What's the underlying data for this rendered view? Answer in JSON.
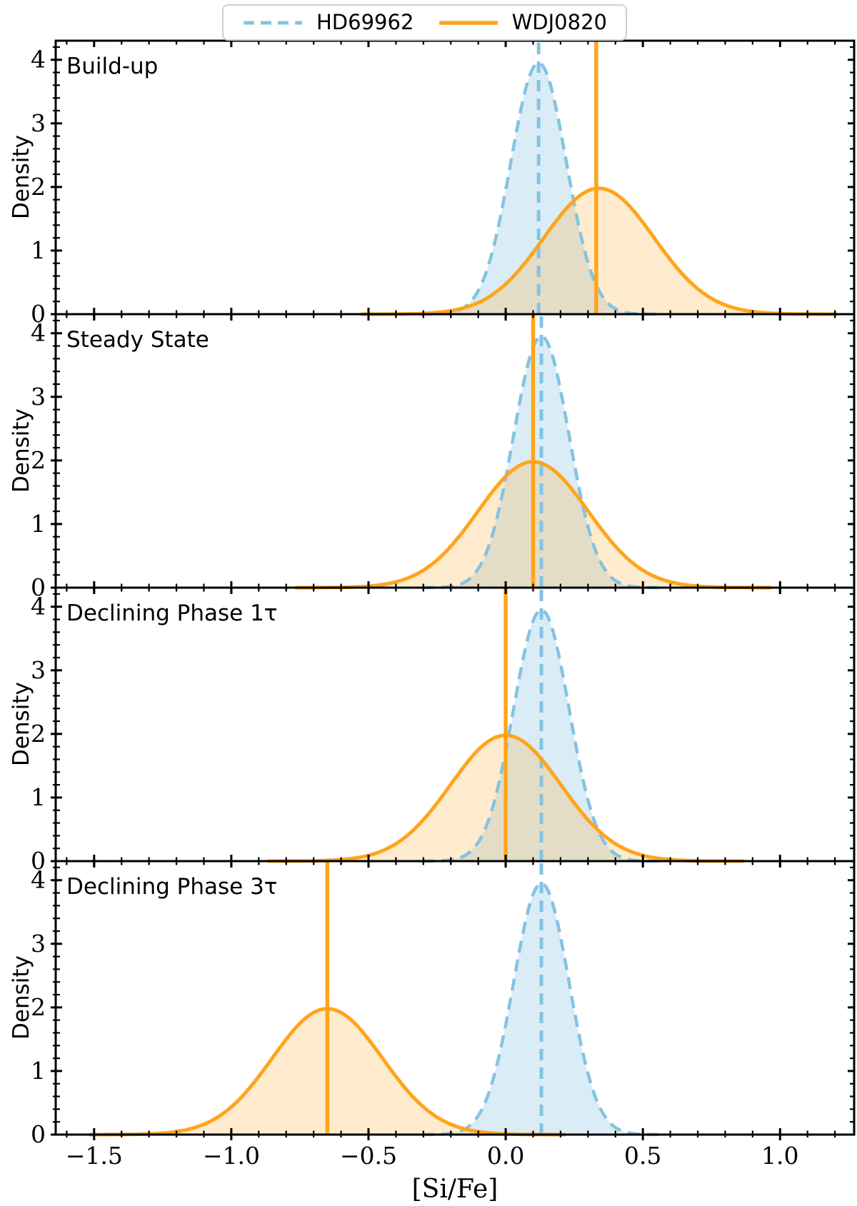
{
  "legend": {
    "items": [
      {
        "label": "HD69962",
        "line_style": "dashed",
        "series": "hd69962"
      },
      {
        "label": "WDJ0820",
        "line_style": "solid",
        "series": "wdj0820"
      }
    ]
  },
  "chart_data": {
    "type": "area",
    "subtype": "gaussian_kde_density",
    "title": "",
    "xlabel": "[Si/Fe]",
    "ylabel": "Density",
    "xlim": [
      -1.64,
      1.27
    ],
    "ylim": [
      0,
      4.3
    ],
    "grid": false,
    "legend_position": "top center",
    "x_major_ticks": [
      {
        "value": -1.5,
        "label": "−1.5"
      },
      {
        "value": -1.0,
        "label": "−1.0"
      },
      {
        "value": -0.5,
        "label": "−0.5"
      },
      {
        "value": 0.0,
        "label": "0.0"
      },
      {
        "value": 0.5,
        "label": "0.5"
      },
      {
        "value": 1.0,
        "label": "1.0"
      }
    ],
    "x_minor_step": 0.1,
    "y_major_ticks": [
      {
        "value": 0,
        "label": "0"
      },
      {
        "value": 1,
        "label": "1"
      },
      {
        "value": 2,
        "label": "2"
      },
      {
        "value": 3,
        "label": "3"
      },
      {
        "value": 4,
        "label": "4"
      }
    ],
    "y_minor_step": 0.2,
    "series_colors": {
      "hd69962": "#85C3E2",
      "hd69962_fill": "rgba(133,195,226,0.30)",
      "wdj0820": "#FFA51B",
      "wdj0820_fill": "rgba(255,170,50,0.24)"
    },
    "panels": [
      {
        "label": "Build-up",
        "hd69962": {
          "mean": 0.12,
          "sigma": 0.101,
          "peak_density": 3.95,
          "vline": 0.12
        },
        "wdj0820": {
          "mean": 0.34,
          "sigma": 0.201,
          "peak_density": 1.98,
          "vline": 0.33
        }
      },
      {
        "label": "Steady State",
        "hd69962": {
          "mean": 0.13,
          "sigma": 0.101,
          "peak_density": 3.95,
          "vline": 0.13
        },
        "wdj0820": {
          "mean": 0.1,
          "sigma": 0.201,
          "peak_density": 1.98,
          "vline": 0.1
        }
      },
      {
        "label": "Declining Phase 1τ",
        "hd69962": {
          "mean": 0.13,
          "sigma": 0.101,
          "peak_density": 3.95,
          "vline": 0.13
        },
        "wdj0820": {
          "mean": 0.0,
          "sigma": 0.201,
          "peak_density": 1.98,
          "vline": 0.0
        }
      },
      {
        "label": "Declining Phase 3τ",
        "hd69962": {
          "mean": 0.13,
          "sigma": 0.101,
          "peak_density": 3.95,
          "vline": 0.13
        },
        "wdj0820": {
          "mean": -0.65,
          "sigma": 0.201,
          "peak_density": 1.98,
          "vline": -0.65
        }
      }
    ]
  }
}
